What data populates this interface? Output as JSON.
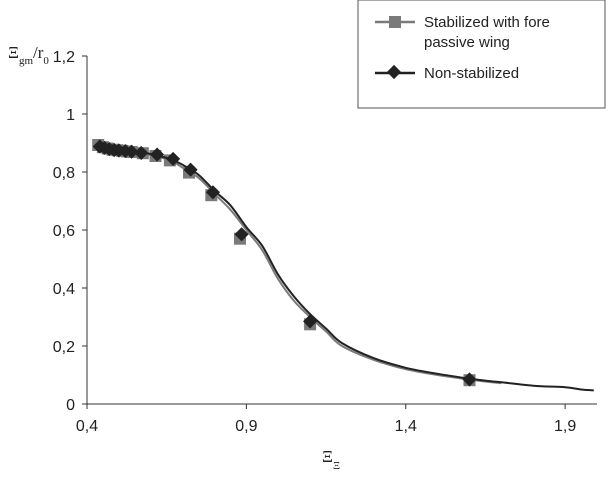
{
  "chart_data": {
    "type": "line",
    "title": "",
    "ylabel": {
      "main": "Ξ",
      "sub": "gm",
      "suffix": "/r",
      "suffix_sub": "0"
    },
    "xlabel": {
      "main": "Ξ",
      "sub": "Ξ"
    },
    "xlim": [
      0.4,
      2.0
    ],
    "ylim": [
      0,
      1.2
    ],
    "x_ticks": [
      0.4,
      0.9,
      1.4,
      1.9
    ],
    "x_tick_labels": [
      "0,4",
      "0,9",
      "1,4",
      "1,9"
    ],
    "y_ticks": [
      0,
      0.2,
      0.4,
      0.6,
      0.8,
      1.0,
      1.2
    ],
    "y_tick_labels": [
      "0",
      "0,2",
      "0,4",
      "0,6",
      "0,8",
      "1",
      "1,2"
    ],
    "grid": false,
    "legend_position": "top-right",
    "series": [
      {
        "name": "Stabilized with fore passive wing",
        "marker": "square",
        "color": "#7a7a7a",
        "curve": [
          [
            0.43,
            0.893
          ],
          [
            0.5,
            0.878
          ],
          [
            0.6,
            0.858
          ],
          [
            0.66,
            0.84
          ],
          [
            0.7,
            0.815
          ],
          [
            0.75,
            0.78
          ],
          [
            0.8,
            0.725
          ],
          [
            0.85,
            0.67
          ],
          [
            0.9,
            0.6
          ],
          [
            0.95,
            0.53
          ],
          [
            1.0,
            0.43
          ],
          [
            1.05,
            0.355
          ],
          [
            1.1,
            0.3
          ],
          [
            1.15,
            0.25
          ],
          [
            1.2,
            0.2
          ],
          [
            1.3,
            0.152
          ],
          [
            1.4,
            0.12
          ],
          [
            1.5,
            0.1
          ],
          [
            1.63,
            0.08
          ],
          [
            1.7,
            0.072
          ]
        ],
        "markers": [
          [
            0.435,
            0.893
          ],
          [
            0.45,
            0.886
          ],
          [
            0.465,
            0.881
          ],
          [
            0.48,
            0.877
          ],
          [
            0.495,
            0.875
          ],
          [
            0.51,
            0.873
          ],
          [
            0.525,
            0.871
          ],
          [
            0.54,
            0.869
          ],
          [
            0.575,
            0.865
          ],
          [
            0.615,
            0.855
          ],
          [
            0.66,
            0.84
          ],
          [
            0.72,
            0.798
          ],
          [
            0.79,
            0.72
          ],
          [
            0.88,
            0.57
          ],
          [
            1.1,
            0.275
          ],
          [
            1.6,
            0.082
          ]
        ]
      },
      {
        "name": "Non-stabilized",
        "marker": "diamond",
        "color": "#222222",
        "curve": [
          [
            0.43,
            0.89
          ],
          [
            0.5,
            0.879
          ],
          [
            0.6,
            0.862
          ],
          [
            0.66,
            0.845
          ],
          [
            0.7,
            0.825
          ],
          [
            0.75,
            0.79
          ],
          [
            0.8,
            0.735
          ],
          [
            0.85,
            0.685
          ],
          [
            0.9,
            0.61
          ],
          [
            0.95,
            0.545
          ],
          [
            1.0,
            0.445
          ],
          [
            1.05,
            0.37
          ],
          [
            1.1,
            0.31
          ],
          [
            1.15,
            0.26
          ],
          [
            1.2,
            0.21
          ],
          [
            1.3,
            0.158
          ],
          [
            1.4,
            0.125
          ],
          [
            1.5,
            0.104
          ],
          [
            1.63,
            0.083
          ],
          [
            1.7,
            0.075
          ],
          [
            1.8,
            0.063
          ],
          [
            1.9,
            0.058
          ],
          [
            1.95,
            0.05
          ],
          [
            1.99,
            0.047
          ]
        ],
        "markers": [
          [
            0.44,
            0.888
          ],
          [
            0.455,
            0.883
          ],
          [
            0.47,
            0.879
          ],
          [
            0.485,
            0.876
          ],
          [
            0.5,
            0.874
          ],
          [
            0.52,
            0.872
          ],
          [
            0.54,
            0.87
          ],
          [
            0.57,
            0.866
          ],
          [
            0.62,
            0.86
          ],
          [
            0.67,
            0.845
          ],
          [
            0.725,
            0.808
          ],
          [
            0.795,
            0.73
          ],
          [
            0.885,
            0.585
          ],
          [
            1.1,
            0.285
          ],
          [
            1.6,
            0.085
          ]
        ]
      }
    ]
  }
}
